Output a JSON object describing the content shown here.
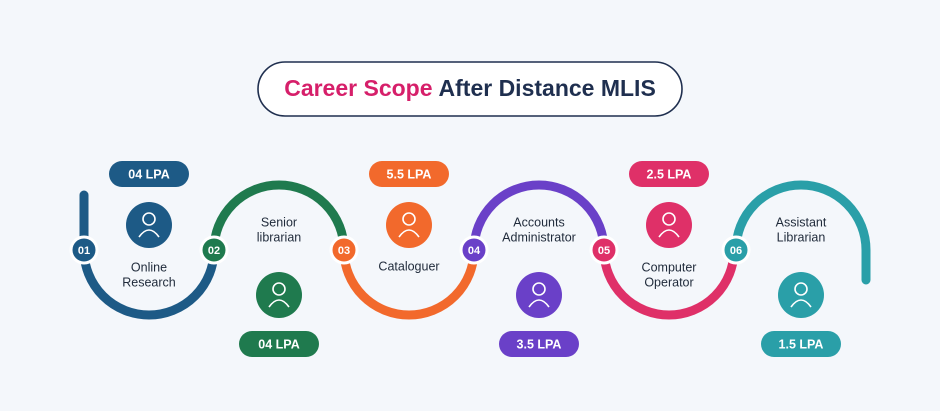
{
  "header": {
    "title_highlight": "Career Scope",
    "title_rest": "After Distance MLIS"
  },
  "steps": [
    {
      "number": "01",
      "label_lines": [
        "Online",
        "Research"
      ],
      "salary": "04 LPA",
      "color": "#1d5a86"
    },
    {
      "number": "02",
      "label_lines": [
        "Senior",
        "librarian"
      ],
      "salary": "04 LPA",
      "color": "#1f7a4e"
    },
    {
      "number": "03",
      "label_lines": [
        "Cataloguer"
      ],
      "salary": "5.5 LPA",
      "color": "#f2692c"
    },
    {
      "number": "04",
      "label_lines": [
        "Accounts",
        "Administrator"
      ],
      "salary": "3.5 LPA",
      "color": "#6a40c8"
    },
    {
      "number": "05",
      "label_lines": [
        "Computer",
        "Operator"
      ],
      "salary": "2.5 LPA",
      "color": "#df3068"
    },
    {
      "number": "06",
      "label_lines": [
        "Assistant",
        "Librarian"
      ],
      "salary": "1.5 LPA",
      "color": "#2a9fa8"
    }
  ]
}
